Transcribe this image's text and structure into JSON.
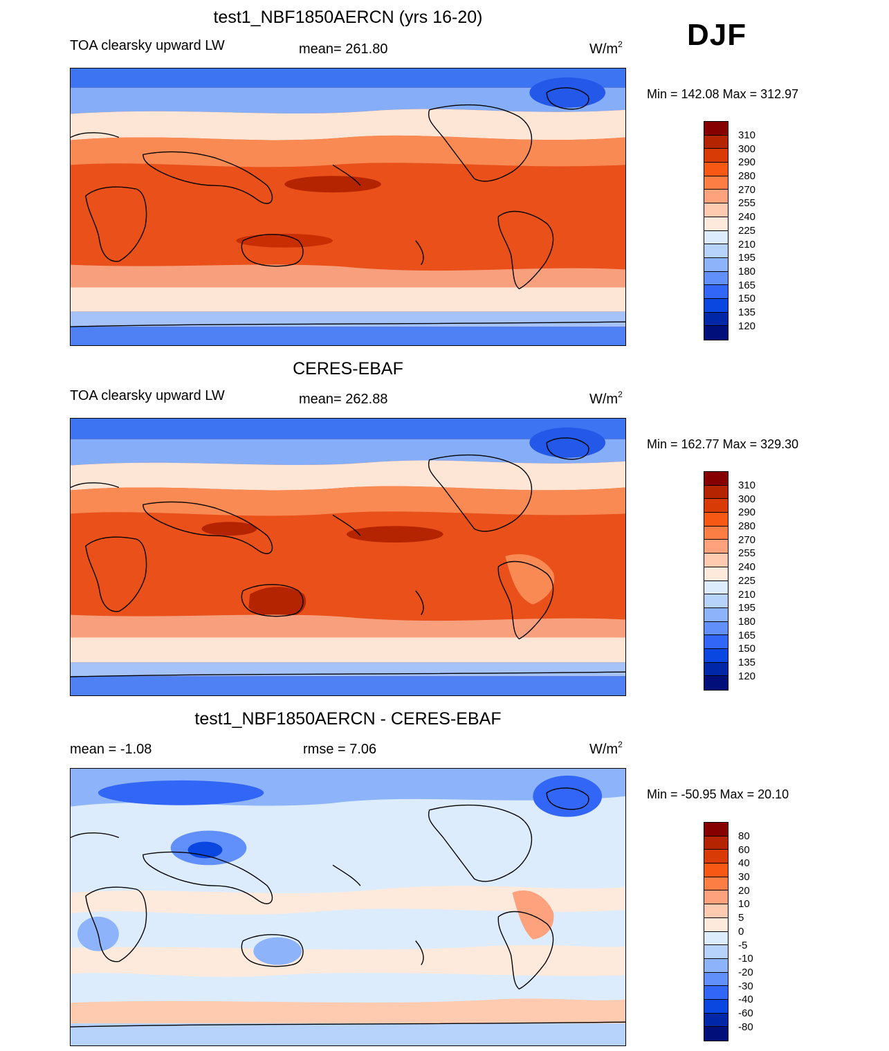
{
  "season": "DJF",
  "units_base": "W/m",
  "units_exp": "2",
  "panels": [
    {
      "title": "test1_NBF1850AERCN (yrs 16-20)",
      "left_label": "TOA clearsky upward LW",
      "center_label": "mean= 261.80",
      "minmax": "Min = 142.08 Max = 312.97",
      "colorbar": {
        "labels": [
          "310",
          "300",
          "290",
          "280",
          "270",
          "255",
          "240",
          "225",
          "210",
          "195",
          "180",
          "165",
          "150",
          "135",
          "120"
        ],
        "colors": [
          "#870000",
          "#b52400",
          "#d93b06",
          "#f75814",
          "#fd7e45",
          "#fda27c",
          "#fecab0",
          "#fdeadc",
          "#dcecfc",
          "#b7d3fb",
          "#8db4fa",
          "#6290fb",
          "#3266f6",
          "#0a46e0",
          "#0027a8",
          "#000f7a"
        ]
      }
    },
    {
      "title": "CERES-EBAF",
      "left_label": "TOA clearsky upward LW",
      "center_label": "mean= 262.88",
      "minmax": "Min = 162.77 Max = 329.30",
      "colorbar": {
        "labels": [
          "310",
          "300",
          "290",
          "280",
          "270",
          "255",
          "240",
          "225",
          "210",
          "195",
          "180",
          "165",
          "150",
          "135",
          "120"
        ],
        "colors": [
          "#870000",
          "#b52400",
          "#d93b06",
          "#f75814",
          "#fd7e45",
          "#fda27c",
          "#fecab0",
          "#fdeadc",
          "#dcecfc",
          "#b7d3fb",
          "#8db4fa",
          "#6290fb",
          "#3266f6",
          "#0a46e0",
          "#0027a8",
          "#000f7a"
        ]
      }
    },
    {
      "title": "test1_NBF1850AERCN - CERES-EBAF",
      "left_label": "mean =  -1.08",
      "center_label": "rmse =   7.06",
      "minmax": "Min = -50.95 Max =  20.10",
      "colorbar": {
        "labels": [
          "80",
          "60",
          "40",
          "30",
          "20",
          "10",
          "5",
          "0",
          "-5",
          "-10",
          "-20",
          "-30",
          "-40",
          "-60",
          "-80"
        ],
        "colors": [
          "#870000",
          "#b52400",
          "#d93b06",
          "#f75814",
          "#fd7e45",
          "#fda27c",
          "#fecab0",
          "#fdeadc",
          "#dcecfc",
          "#b7d3fb",
          "#8db4fa",
          "#6290fb",
          "#3266f6",
          "#0a46e0",
          "#0027a8",
          "#000f7a"
        ]
      }
    }
  ]
}
